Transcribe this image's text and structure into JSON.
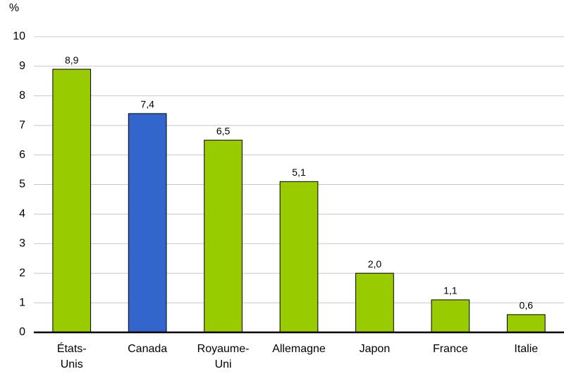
{
  "chart_data": {
    "type": "bar",
    "y_label": "%",
    "categories": [
      "États-Unis",
      "Canada",
      "Royaume-Uni",
      "Allemagne",
      "Japon",
      "France",
      "Italie"
    ],
    "values": [
      8.9,
      7.4,
      6.5,
      5.1,
      2.0,
      1.1,
      0.6
    ],
    "value_labels": [
      "8,9",
      "7,4",
      "6,5",
      "5,1",
      "2,0",
      "1,1",
      "0,6"
    ],
    "colors": [
      "#99cc00",
      "#3366cc",
      "#99cc00",
      "#99cc00",
      "#99cc00",
      "#99cc00",
      "#99cc00"
    ],
    "ylim": [
      0,
      10
    ],
    "yticks": [
      0,
      1,
      2,
      3,
      4,
      5,
      6,
      7,
      8,
      9,
      10
    ],
    "grid": true
  }
}
